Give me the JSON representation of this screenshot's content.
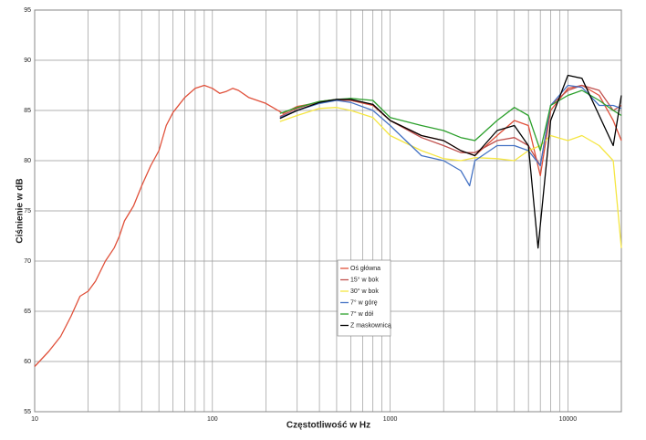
{
  "chart_data": {
    "type": "line",
    "x_label": "Częstotliwość w Hz",
    "y_label": "Ciśnienie w dB",
    "xlim": [
      10,
      20000
    ],
    "ylim": [
      55,
      95
    ],
    "xticks": [
      10,
      100,
      1000,
      10000
    ],
    "x_minor_ticks": [
      20,
      30,
      40,
      50,
      60,
      70,
      80,
      90,
      200,
      300,
      400,
      500,
      600,
      700,
      800,
      900,
      2000,
      3000,
      4000,
      5000,
      6000,
      7000,
      8000,
      9000
    ],
    "yticks": [
      55,
      60,
      65,
      70,
      75,
      80,
      85,
      90,
      95
    ],
    "x_scale": "log",
    "grid": true,
    "legend_position": "center",
    "series": [
      {
        "name": "Oś główna",
        "color": "#e0503a",
        "x": [
          10,
          12,
          14,
          16,
          18,
          20,
          22,
          25,
          28,
          30,
          32,
          36,
          40,
          45,
          50,
          55,
          60,
          70,
          80,
          90,
          100,
          110,
          120,
          130,
          140,
          160,
          200,
          250,
          300,
          400,
          500,
          600,
          800,
          1000,
          1500,
          2000,
          2500,
          3000,
          4000,
          5000,
          6000,
          7000,
          8000,
          10000,
          12000,
          15000,
          18000,
          20000
        ],
        "values": [
          59.5,
          61,
          62.5,
          64.5,
          66.5,
          67,
          68,
          70,
          71.3,
          72.5,
          74,
          75.5,
          77.5,
          79.5,
          81,
          83.5,
          84.8,
          86.3,
          87.2,
          87.5,
          87.2,
          86.7,
          86.9,
          87.2,
          87.0,
          86.3,
          85.7,
          84.7,
          85.4,
          85.8,
          86.0,
          86.0,
          85.5,
          84.0,
          82.5,
          82.0,
          81.0,
          80.5,
          82.5,
          84,
          83.5,
          78.5,
          85,
          87.2,
          87.5,
          86.5,
          84,
          82
        ]
      },
      {
        "name": "15° w bok",
        "color": "#c0504d",
        "x": [
          240,
          300,
          400,
          500,
          600,
          800,
          1000,
          1500,
          2000,
          2500,
          3000,
          4000,
          5000,
          6000,
          7000,
          8000,
          10000,
          12000,
          15000,
          18000,
          20000
        ],
        "values": [
          84.4,
          85.2,
          85.9,
          86.1,
          86.0,
          85.6,
          84.0,
          82.3,
          81.5,
          80.8,
          80.8,
          82.0,
          82.3,
          81.5,
          79.5,
          85.5,
          87.0,
          87.5,
          87.0,
          85,
          85.5
        ]
      },
      {
        "name": "30° w bok",
        "color": "#f5e642",
        "x": [
          240,
          300,
          400,
          500,
          600,
          800,
          1000,
          1500,
          2000,
          2500,
          3000,
          4000,
          5000,
          6000,
          7000,
          8000,
          10000,
          12000,
          15000,
          18000,
          20000
        ],
        "values": [
          83.9,
          84.5,
          85.2,
          85.3,
          85.0,
          84.3,
          82.5,
          81.0,
          80.2,
          80.0,
          80.3,
          80.2,
          80.0,
          81.0,
          81.5,
          82.5,
          82.0,
          82.5,
          81.5,
          80,
          71.3
        ]
      },
      {
        "name": "7° w górę",
        "color": "#4472c4",
        "x": [
          240,
          300,
          400,
          500,
          600,
          800,
          1000,
          1500,
          2000,
          2500,
          2800,
          3000,
          4000,
          5000,
          6000,
          7000,
          8000,
          10000,
          12000,
          15000,
          18000,
          20000
        ],
        "values": [
          84.3,
          85.0,
          85.7,
          86.0,
          85.8,
          85.0,
          83.5,
          80.5,
          80.0,
          79.0,
          77.5,
          80.0,
          81.5,
          81.5,
          81.0,
          79.5,
          85.5,
          87.5,
          87.3,
          85.5,
          85.5,
          85.2
        ]
      },
      {
        "name": "7° w dół",
        "color": "#2ca02c",
        "x": [
          240,
          300,
          400,
          500,
          600,
          800,
          1000,
          1500,
          2000,
          2500,
          3000,
          4000,
          5000,
          6000,
          7000,
          8000,
          10000,
          12000,
          15000,
          18000,
          20000
        ],
        "values": [
          84.7,
          85.3,
          85.9,
          86.1,
          86.2,
          86.0,
          84.3,
          83.5,
          83.0,
          82.3,
          82.0,
          84.0,
          85.3,
          84.5,
          81.0,
          85.5,
          86.5,
          87.0,
          86.0,
          85.0,
          84.5
        ]
      },
      {
        "name": "Z maskownicą",
        "color": "#000000",
        "x": [
          240,
          300,
          400,
          500,
          600,
          800,
          1000,
          1500,
          2000,
          2500,
          3000,
          4000,
          5000,
          6000,
          6800,
          8000,
          10000,
          12000,
          15000,
          18000,
          20000
        ],
        "values": [
          84.2,
          85.0,
          85.8,
          86.1,
          86.1,
          85.6,
          84.0,
          82.5,
          82.0,
          81.0,
          80.5,
          83.0,
          83.5,
          81.5,
          71.3,
          84.0,
          88.5,
          88.2,
          84.5,
          81.5,
          86.5
        ]
      }
    ]
  }
}
